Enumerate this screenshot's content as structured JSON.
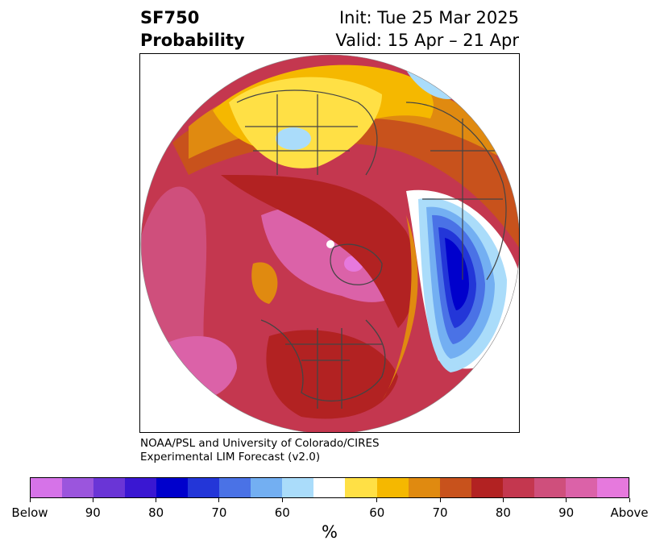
{
  "header": {
    "title_line1": "SF750",
    "title_line2": "Probability",
    "init_text": "Init: Tue 25 Mar 2025",
    "valid_text": "Valid: 15 Apr – 21 Apr"
  },
  "credit": {
    "line1": "NOAA/PSL and University of Colorado/CIRES",
    "line2": "Experimental LIM Forecast (v2.0)"
  },
  "colorbar": {
    "unit_label": "%",
    "colors": [
      "#d673e8",
      "#9b55dd",
      "#6a35d6",
      "#3a17d2",
      "#0000cc",
      "#2336d8",
      "#4a72e6",
      "#73aff2",
      "#aadcfa",
      "#ffffff",
      "#ffe045",
      "#f5b800",
      "#e08a10",
      "#c8521c",
      "#b22222",
      "#c4374f",
      "#cf4f7c",
      "#db62a8",
      "#e679dd"
    ],
    "tick_labels": [
      "Below",
      "90",
      "80",
      "70",
      "60",
      "60",
      "70",
      "80",
      "90",
      "Above"
    ]
  },
  "map": {
    "regions": [
      {
        "name": "warm-strong-west",
        "color": "#c4374f"
      },
      {
        "name": "warm-above",
        "color": "#db62a8"
      },
      {
        "name": "warm-80",
        "color": "#b22222"
      },
      {
        "name": "warm-70",
        "color": "#c8521c"
      },
      {
        "name": "warm-60",
        "color": "#e08a10"
      },
      {
        "name": "warm-55",
        "color": "#f5b800"
      },
      {
        "name": "warm-50",
        "color": "#ffe045"
      },
      {
        "name": "cool-60",
        "color": "#aadcfa"
      },
      {
        "name": "cool-70",
        "color": "#73aff2"
      },
      {
        "name": "cool-80",
        "color": "#4a72e6"
      },
      {
        "name": "cool-90",
        "color": "#2336d8"
      },
      {
        "name": "cool-below",
        "color": "#0000cc"
      }
    ]
  }
}
